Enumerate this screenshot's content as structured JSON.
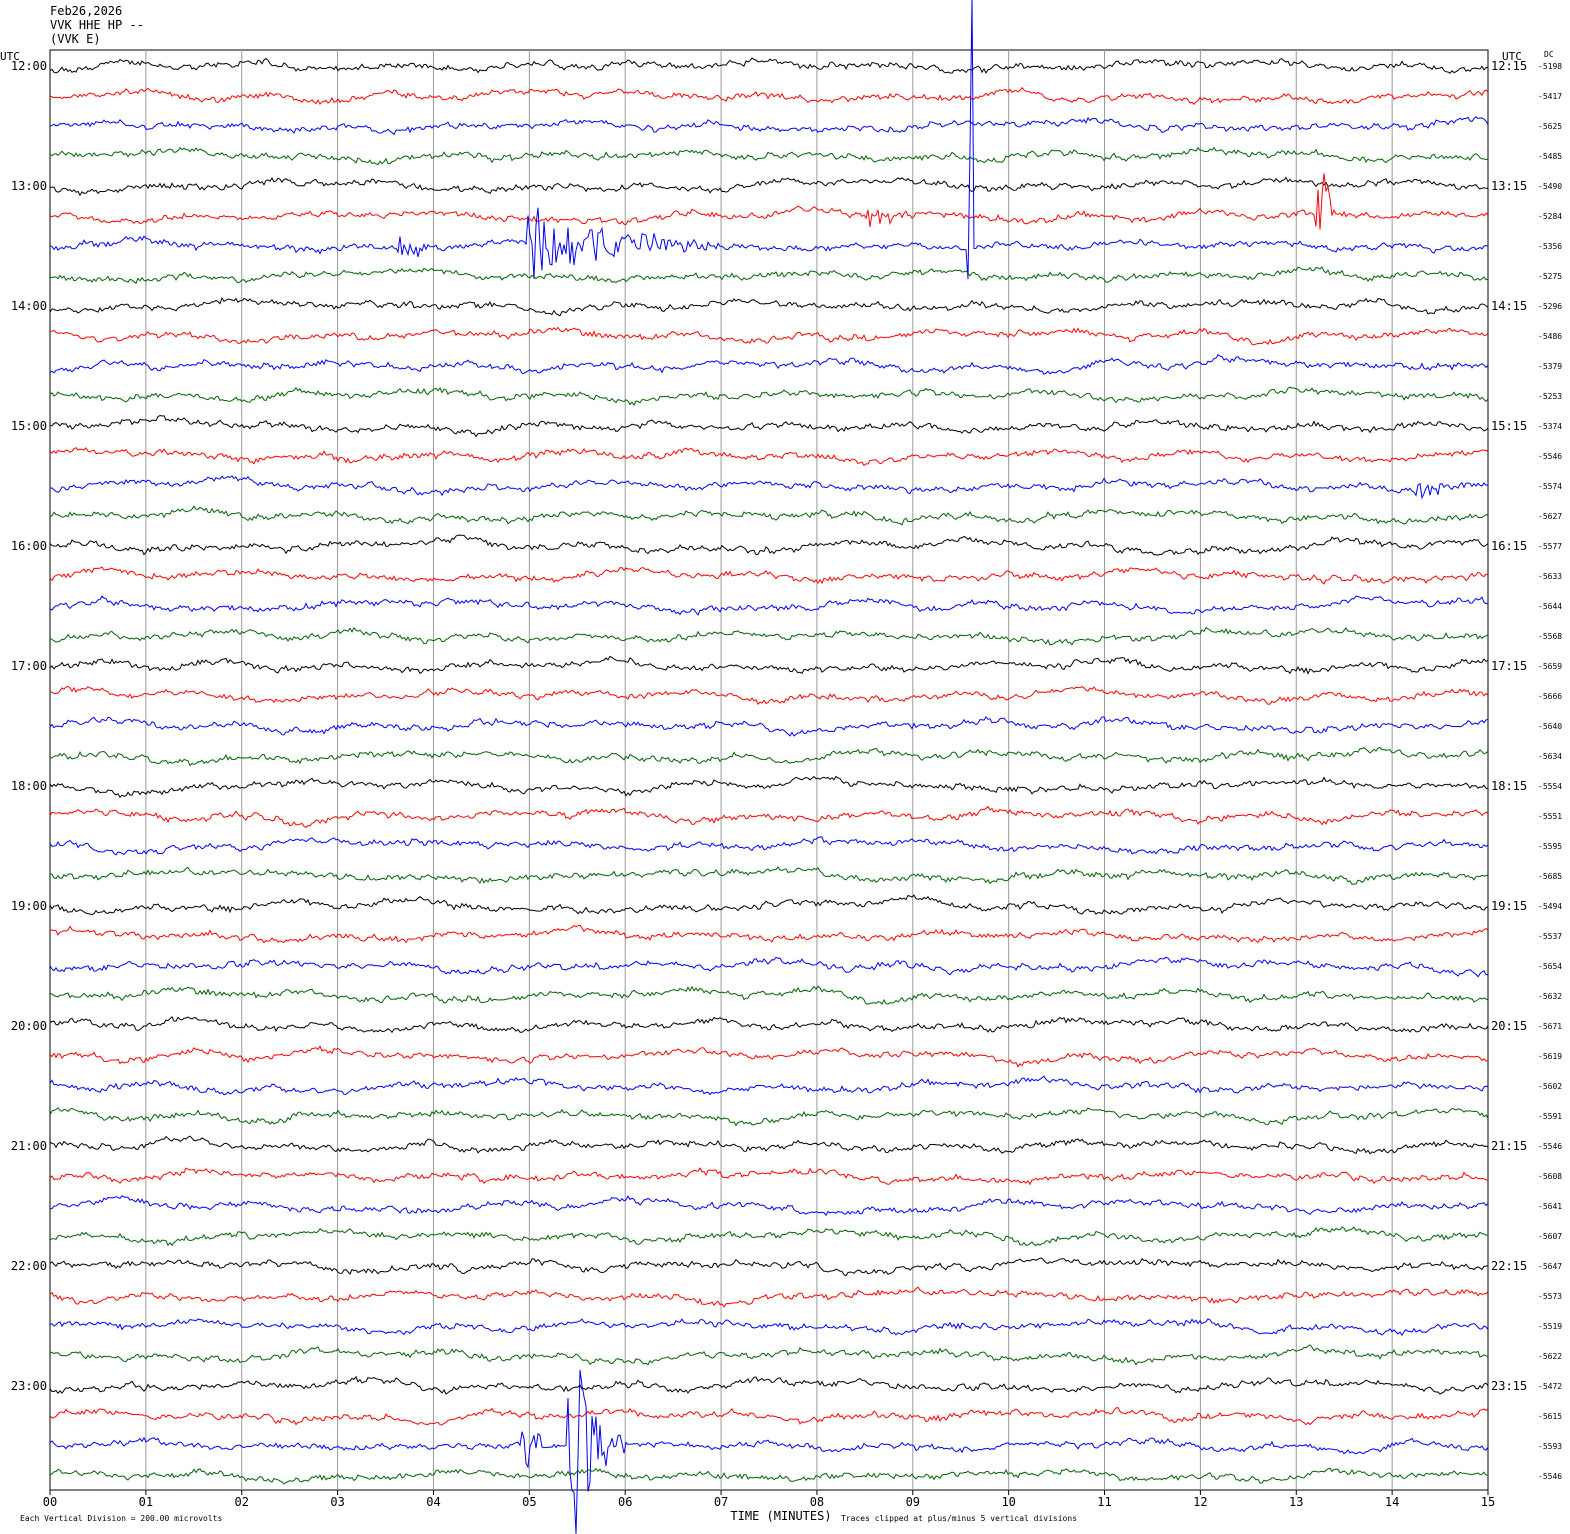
{
  "header": {
    "date": "Feb26,2026",
    "station": "VVK HHE HP --",
    "component": "(VVK E)"
  },
  "chart_data": {
    "type": "line",
    "left_axis_label": "UTC",
    "right_axis_label": "UTC",
    "dc_label": "DC",
    "xlabel": "TIME (MINUTES)",
    "x_ticks": [
      "00",
      "01",
      "02",
      "03",
      "04",
      "05",
      "06",
      "07",
      "08",
      "09",
      "10",
      "11",
      "12",
      "13",
      "14",
      "15"
    ],
    "xlim": [
      0,
      15
    ],
    "trace_colors": [
      "#000000",
      "#ff0000",
      "#0000ff",
      "#006400"
    ],
    "left_hour_labels": [
      "12:00",
      "13:00",
      "14:00",
      "15:00",
      "16:00",
      "17:00",
      "18:00",
      "19:00",
      "20:00",
      "21:00",
      "22:00",
      "23:00"
    ],
    "right_hour_labels": [
      "12:15",
      "13:15",
      "14:15",
      "15:15",
      "16:15",
      "17:15",
      "18:15",
      "19:15",
      "20:15",
      "21:15",
      "22:15",
      "23:15"
    ],
    "dc_values": [
      "-5198",
      "-5417",
      "-5625",
      "-5485",
      "-5490",
      "-5284",
      "-5356",
      "-5275",
      "-5296",
      "-5486",
      "-5379",
      "-5253",
      "-5374",
      "-5546",
      "-5574",
      "-5627",
      "-5577",
      "-5633",
      "-5644",
      "-5568",
      "-5659",
      "-5666",
      "-5640",
      "-5634",
      "-5554",
      "-5551",
      "-5595",
      "-5685",
      "-5494",
      "-5537",
      "-5654",
      "-5632",
      "-5671",
      "-5619",
      "-5602",
      "-5591",
      "-5546",
      "-5608",
      "-5641",
      "-5607",
      "-5647",
      "-5573",
      "-5519",
      "-5622",
      "-5472",
      "-5615",
      "-5593",
      "-5546"
    ],
    "events": [
      {
        "trace": 6,
        "start_min": 3.6,
        "end_min": 4.1,
        "amp": 20
      },
      {
        "trace": 6,
        "start_min": 4.95,
        "end_min": 7.0,
        "amp": 55
      },
      {
        "trace": 5,
        "start_min": 8.5,
        "end_min": 9.4,
        "amp": 16
      },
      {
        "trace": 6,
        "start_min": 9.57,
        "end_min": 9.62,
        "amp": 280
      },
      {
        "trace": 5,
        "start_min": 13.2,
        "end_min": 13.4,
        "amp": 200
      },
      {
        "trace": 14,
        "start_min": 14.2,
        "end_min": 15.0,
        "amp": 14
      },
      {
        "trace": 46,
        "start_min": 4.9,
        "end_min": 5.2,
        "amp": 60
      },
      {
        "trace": 46,
        "start_min": 5.4,
        "end_min": 6.0,
        "amp": 150
      }
    ],
    "footer_left": "Each Vertical Division =  200.00 microvolts",
    "footer_right": "Traces clipped at plus/minus 5 vertical divisions"
  }
}
